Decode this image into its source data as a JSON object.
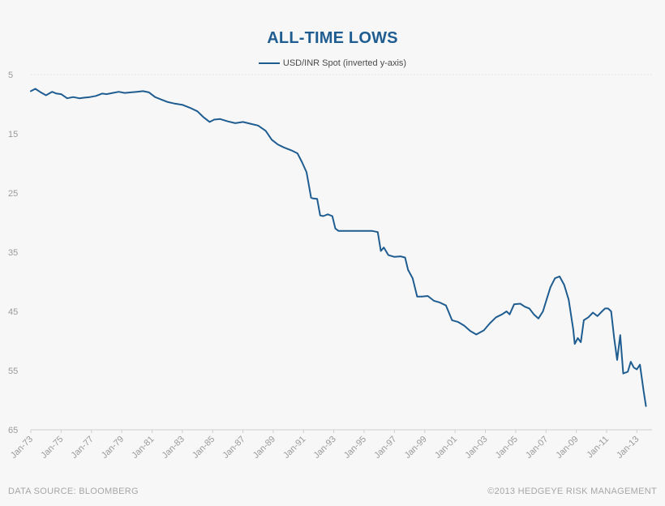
{
  "footer": {
    "source": "DATA SOURCE:  BLOOMBERG",
    "copyright": "©2013 HEDGEYE  RISK MANAGEMENT"
  },
  "chart_data": {
    "type": "line",
    "title": "ALL-TIME LOWS",
    "xlabel": "",
    "ylabel": "",
    "y_inverted": true,
    "ylim": [
      5,
      65
    ],
    "xlim": [
      1973,
      2014
    ],
    "yticks": [
      5,
      15,
      25,
      35,
      45,
      55,
      65
    ],
    "xticks": [
      {
        "label": "Jan-73",
        "x": 1973
      },
      {
        "label": "Jan-75",
        "x": 1975
      },
      {
        "label": "Jan-77",
        "x": 1977
      },
      {
        "label": "Jan-79",
        "x": 1979
      },
      {
        "label": "Jan-81",
        "x": 1981
      },
      {
        "label": "Jan-83",
        "x": 1983
      },
      {
        "label": "Jan-85",
        "x": 1985
      },
      {
        "label": "Jan-87",
        "x": 1987
      },
      {
        "label": "Jan-89",
        "x": 1989
      },
      {
        "label": "Jan-91",
        "x": 1991
      },
      {
        "label": "Jan-93",
        "x": 1993
      },
      {
        "label": "Jan-95",
        "x": 1995
      },
      {
        "label": "Jan-97",
        "x": 1997
      },
      {
        "label": "Jan-99",
        "x": 1999
      },
      {
        "label": "Jan-01",
        "x": 2001
      },
      {
        "label": "Jan-03",
        "x": 2003
      },
      {
        "label": "Jan-05",
        "x": 2005
      },
      {
        "label": "Jan-07",
        "x": 2007
      },
      {
        "label": "Jan-09",
        "x": 2009
      },
      {
        "label": "Jan-11",
        "x": 2011
      },
      {
        "label": "Jan-13",
        "x": 2013
      }
    ],
    "grid": false,
    "legend_position": "top-center",
    "colors": {
      "series": "#1f5d91",
      "axis": "#cfcfcf"
    },
    "series": [
      {
        "name": "USD/INR Spot (inverted y-axis)",
        "x": [
          1973.0,
          1973.3,
          1973.6,
          1974.0,
          1974.4,
          1974.7,
          1975.0,
          1975.4,
          1975.8,
          1976.2,
          1976.5,
          1976.9,
          1977.3,
          1977.7,
          1978.0,
          1978.4,
          1978.8,
          1979.2,
          1979.6,
          1980.0,
          1980.4,
          1980.8,
          1981.2,
          1981.6,
          1982.0,
          1982.5,
          1983.0,
          1983.5,
          1984.0,
          1984.4,
          1984.8,
          1985.1,
          1985.5,
          1986.0,
          1986.5,
          1987.0,
          1987.5,
          1988.0,
          1988.5,
          1988.9,
          1989.3,
          1989.7,
          1990.2,
          1990.6,
          1990.9,
          1991.2,
          1991.5,
          1991.6,
          1991.9,
          1992.1,
          1992.3,
          1992.6,
          1992.9,
          1993.1,
          1993.3,
          1993.6,
          1994.0,
          1994.5,
          1995.0,
          1995.5,
          1995.9,
          1996.1,
          1996.3,
          1996.6,
          1997.0,
          1997.4,
          1997.7,
          1997.9,
          1998.2,
          1998.5,
          1998.8,
          1999.2,
          1999.6,
          2000.0,
          2000.4,
          2000.8,
          2001.2,
          2001.6,
          2002.0,
          2002.4,
          2002.9,
          2003.3,
          2003.7,
          2004.1,
          2004.4,
          2004.6,
          2004.9,
          2005.3,
          2005.6,
          2005.9,
          2006.2,
          2006.5,
          2006.8,
          2007.1,
          2007.3,
          2007.6,
          2007.9,
          2008.2,
          2008.5,
          2008.8,
          2008.9,
          2009.1,
          2009.3,
          2009.5,
          2009.8,
          2010.1,
          2010.4,
          2010.7,
          2010.9,
          2011.1,
          2011.3,
          2011.5,
          2011.7,
          2011.9,
          2012.1,
          2012.4,
          2012.6,
          2012.8,
          2013.0,
          2013.2,
          2013.45,
          2013.6
        ],
        "values": [
          7.8,
          7.4,
          7.9,
          8.5,
          7.9,
          8.2,
          8.3,
          9.0,
          8.8,
          9.0,
          8.9,
          8.8,
          8.6,
          8.2,
          8.3,
          8.1,
          7.9,
          8.1,
          8.0,
          7.9,
          7.8,
          8.0,
          8.8,
          9.2,
          9.6,
          9.9,
          10.1,
          10.6,
          11.2,
          12.2,
          13.0,
          12.6,
          12.5,
          12.9,
          13.2,
          13.0,
          13.3,
          13.6,
          14.5,
          16.0,
          16.8,
          17.3,
          17.8,
          18.3,
          19.8,
          21.5,
          25.8,
          25.9,
          26.0,
          28.8,
          28.9,
          28.6,
          28.9,
          31.0,
          31.4,
          31.4,
          31.4,
          31.4,
          31.4,
          31.4,
          31.6,
          34.8,
          34.2,
          35.5,
          35.8,
          35.7,
          35.9,
          38.0,
          39.4,
          42.5,
          42.5,
          42.4,
          43.2,
          43.5,
          44.0,
          46.5,
          46.8,
          47.4,
          48.3,
          48.9,
          48.2,
          47.0,
          46.0,
          45.5,
          45.0,
          45.5,
          43.8,
          43.7,
          44.2,
          44.5,
          45.5,
          46.2,
          45.0,
          42.5,
          40.9,
          39.4,
          39.1,
          40.5,
          43.0,
          48.0,
          50.5,
          49.5,
          50.2,
          46.5,
          46.0,
          45.2,
          45.8,
          45.0,
          44.5,
          44.5,
          45.0,
          49.5,
          53.2,
          49.0,
          55.5,
          55.2,
          53.5,
          54.5,
          54.8,
          54.0,
          58.5,
          61.0
        ]
      }
    ]
  }
}
